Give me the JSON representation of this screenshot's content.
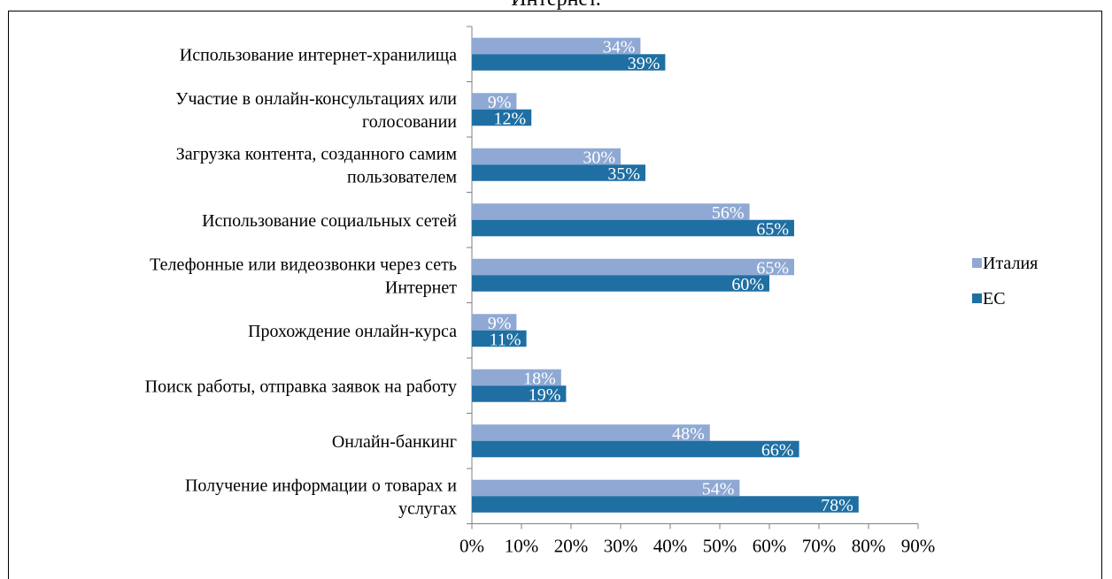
{
  "caption": "Интернет.",
  "colors": {
    "italy": "#8fa9d4",
    "eu": "#1f6fa3"
  },
  "chart_data": {
    "type": "bar",
    "orientation": "horizontal",
    "categories": [
      [
        "Использование интернет-хранилища"
      ],
      [
        "Участие в онлайн-консультациях или",
        "голосовании"
      ],
      [
        "Загрузка контента, созданного самим",
        "пользователем"
      ],
      [
        "Использование социальных сетей"
      ],
      [
        "Телефонные или видеозвонки через сеть",
        "Интернет"
      ],
      [
        "Прохождение онлайн-курса"
      ],
      [
        "Поиск работы, отправка заявок на работу"
      ],
      [
        "Онлайн-банкинг"
      ],
      [
        "Получение информации о товарах и",
        "услугах"
      ]
    ],
    "series": [
      {
        "name": "Италия",
        "values": [
          34,
          9,
          30,
          56,
          65,
          9,
          18,
          48,
          54
        ],
        "labels": [
          "34%",
          "9%",
          "30%",
          "56%",
          "65%",
          "9%",
          "18%",
          "48%",
          "54%"
        ]
      },
      {
        "name": "ЕС",
        "values": [
          39,
          12,
          35,
          65,
          60,
          11,
          19,
          66,
          78
        ],
        "labels": [
          "39%",
          "12%",
          "35%",
          "65%",
          "60%",
          "11%",
          "19%",
          "66%",
          "78%"
        ]
      }
    ],
    "xlim": [
      0,
      90
    ],
    "ticks": [
      "0%",
      "10%",
      "20%",
      "30%",
      "40%",
      "50%",
      "60%",
      "70%",
      "80%",
      "90%"
    ],
    "grid": false,
    "legend_position": "right",
    "title": "",
    "xlabel": "",
    "ylabel": ""
  }
}
